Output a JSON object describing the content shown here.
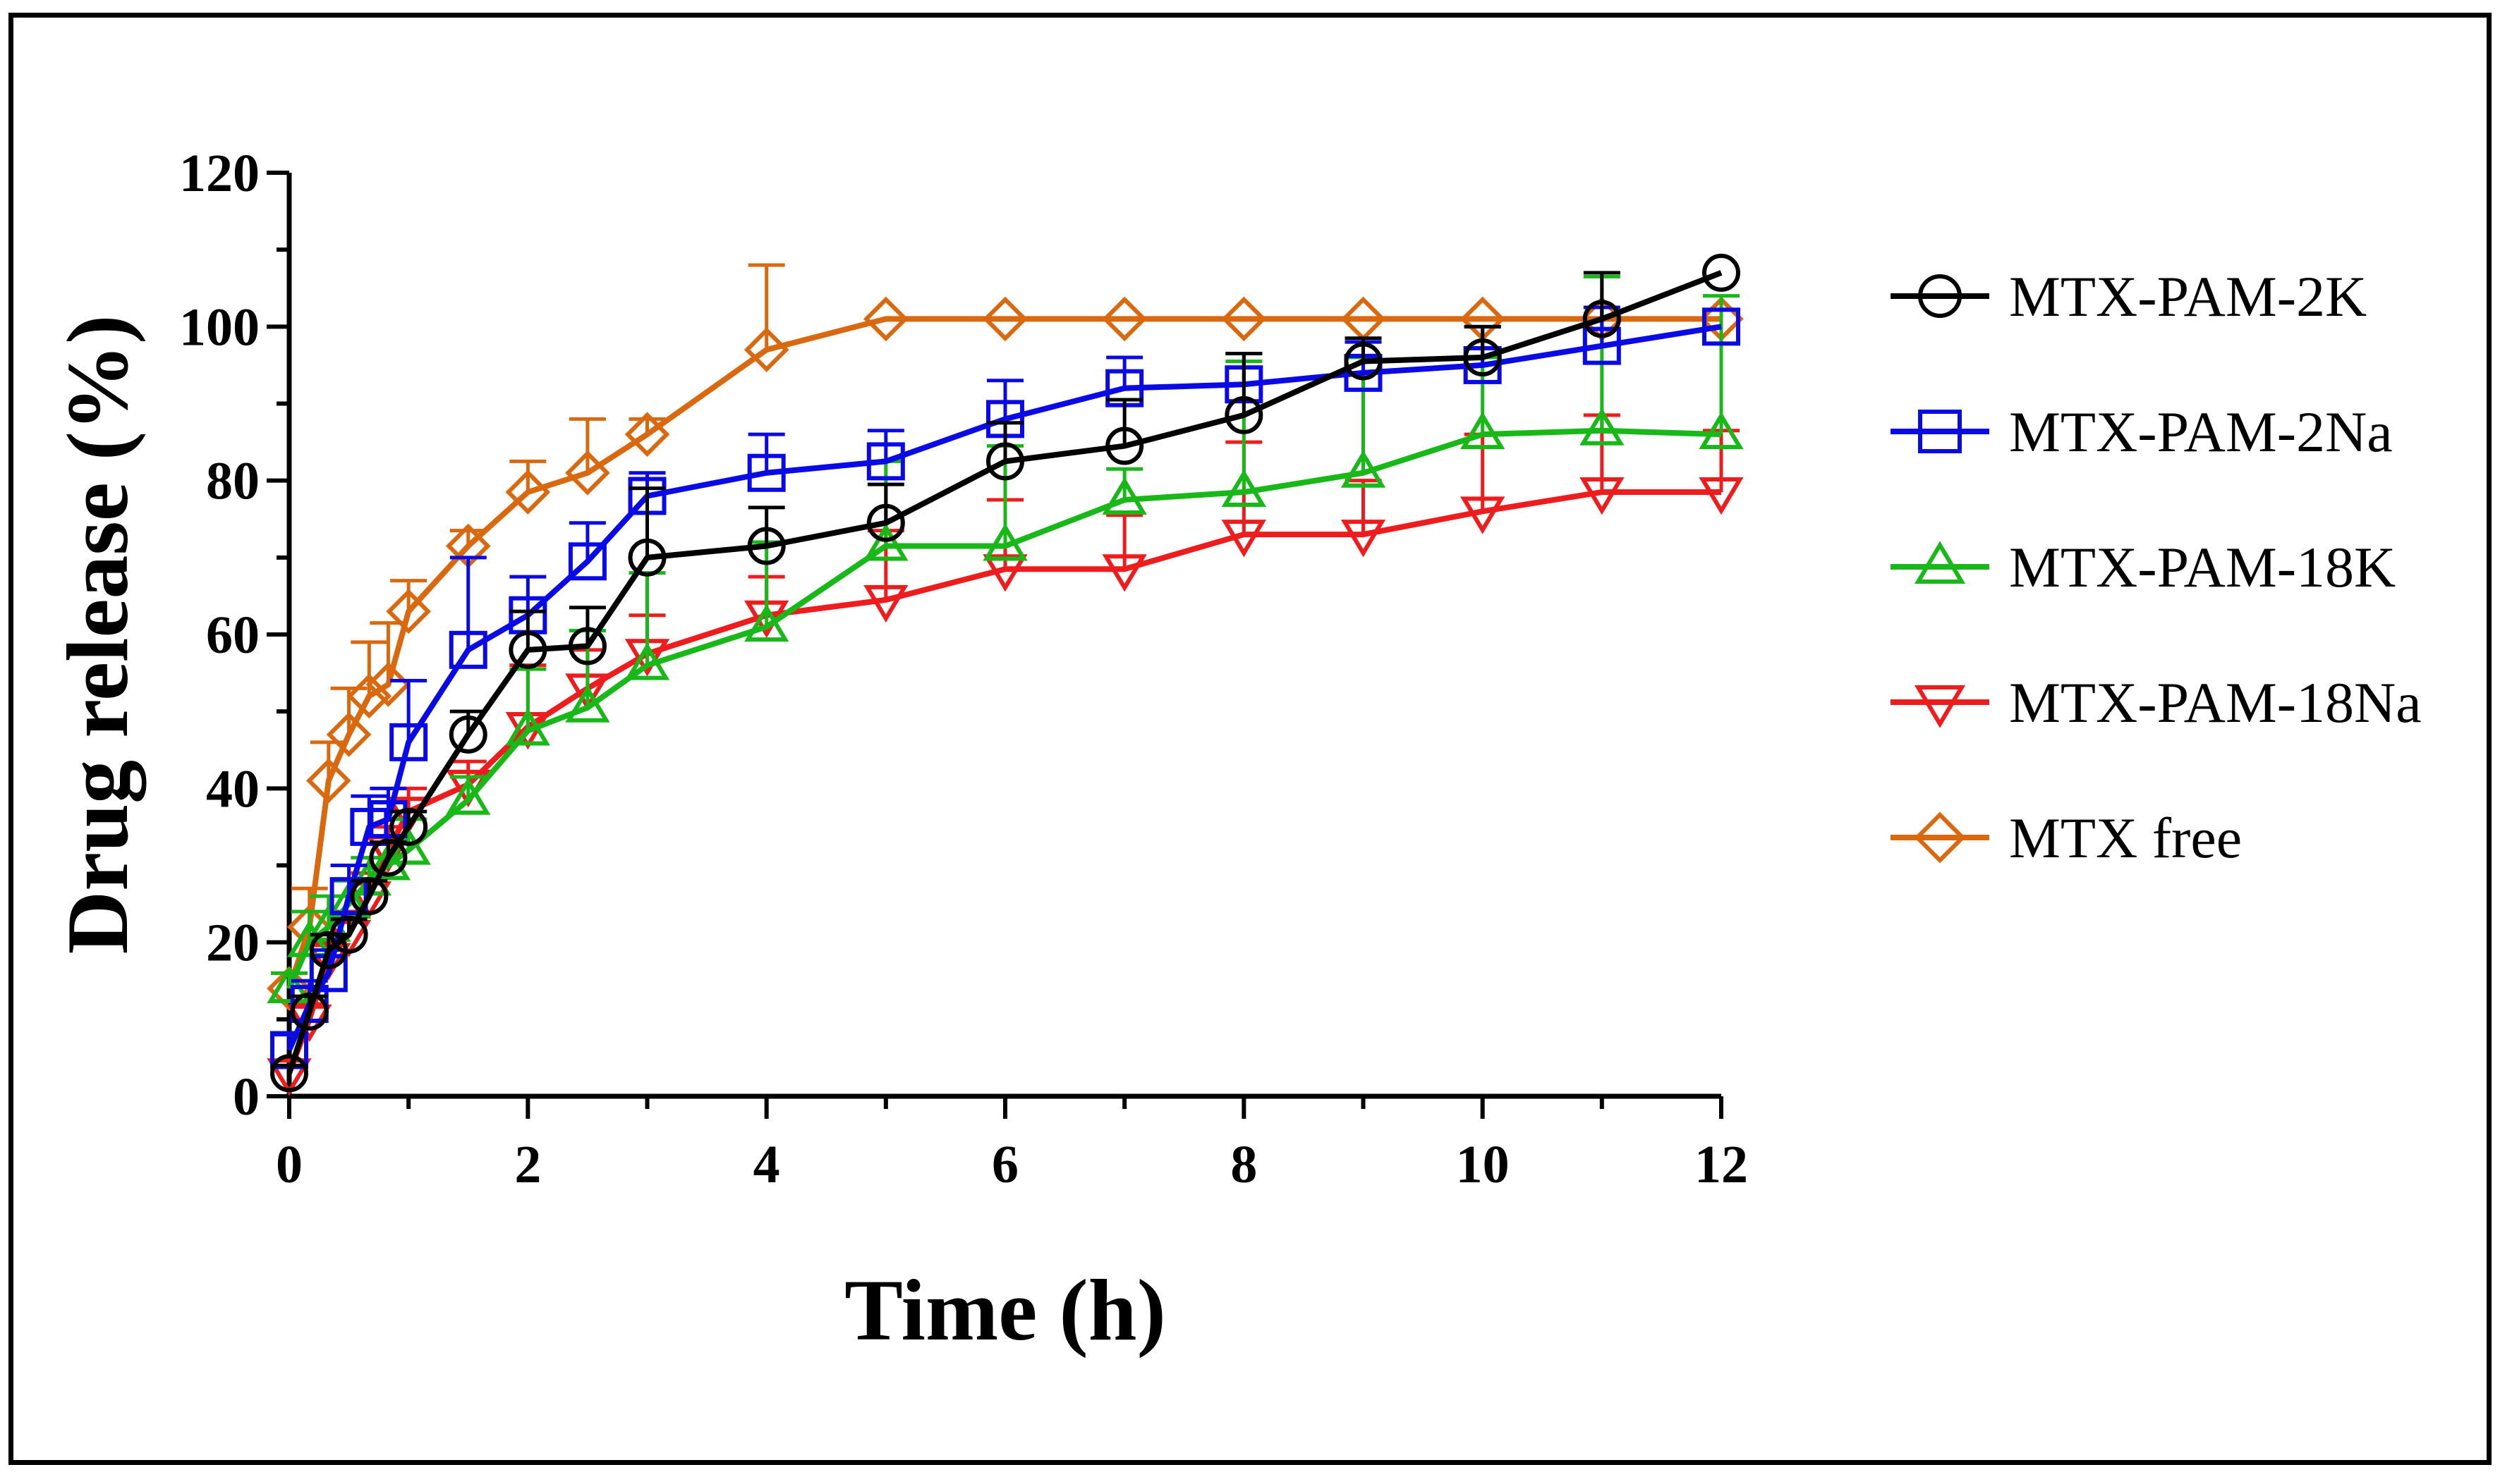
{
  "chart_data": {
    "type": "line",
    "title": "",
    "xlabel": "Time (h)",
    "ylabel": "Drug release (%)",
    "xlim": [
      0,
      12
    ],
    "ylim": [
      0,
      120
    ],
    "xticks": [
      0,
      2,
      4,
      6,
      8,
      10,
      12
    ],
    "yticks": [
      0,
      20,
      40,
      60,
      80,
      100,
      120
    ],
    "x_minor_step": 1,
    "y_minor_step": 10,
    "grid": false,
    "legend_position": "right",
    "series": [
      {
        "name": "MTX-PAM-2K",
        "color": "#000000",
        "marker": "circle",
        "x": [
          0,
          0.17,
          0.33,
          0.5,
          0.67,
          0.83,
          1,
          1.5,
          2,
          2.5,
          3,
          4,
          5,
          6,
          7,
          8,
          9,
          10,
          11,
          12
        ],
        "values": [
          3,
          11,
          19,
          21,
          26,
          31,
          35,
          47,
          58,
          58.5,
          70,
          71.5,
          74.5,
          82.5,
          84.5,
          88.5,
          95.5,
          96,
          101,
          107
        ],
        "errors": [
          1,
          2,
          2,
          2,
          2,
          2,
          2,
          3,
          5,
          5,
          9,
          5,
          5,
          5,
          6,
          8,
          3,
          4,
          6,
          0
        ]
      },
      {
        "name": "MTX-PAM-2Na",
        "color": "#0a0ae6",
        "marker": "square",
        "x": [
          0,
          0.17,
          0.33,
          0.5,
          0.67,
          0.83,
          1,
          1.5,
          2,
          2.5,
          3,
          4,
          5,
          6,
          7,
          8,
          9,
          10,
          11,
          12
        ],
        "values": [
          6,
          12,
          16,
          26,
          35,
          36,
          46,
          58,
          62.5,
          69.5,
          78,
          81,
          82.5,
          88,
          92,
          92.5,
          94,
          95,
          97.5,
          100
        ],
        "errors": [
          2,
          3,
          3,
          4,
          4,
          4,
          8,
          12,
          5,
          5,
          3,
          5,
          4,
          5,
          4,
          4,
          4,
          5,
          5,
          0
        ]
      },
      {
        "name": "MTX-PAM-18K",
        "color": "#18b818",
        "marker": "triangle-up",
        "x": [
          0,
          0.17,
          0.33,
          0.5,
          0.67,
          0.83,
          1,
          1.5,
          2,
          2.5,
          3,
          4,
          5,
          6,
          7,
          8,
          9,
          10,
          11,
          12
        ],
        "values": [
          14,
          20,
          22,
          25,
          28,
          30,
          32,
          38.5,
          47.5,
          50.5,
          56,
          61,
          71.5,
          71.5,
          77.5,
          78.5,
          81,
          86,
          86.5,
          86
        ],
        "errors": [
          2,
          4,
          4,
          3,
          3,
          3,
          4,
          3,
          8,
          10,
          12,
          11,
          11,
          13,
          4,
          17,
          15,
          10,
          20,
          18
        ]
      },
      {
        "name": "MTX-PAM-18Na",
        "color": "#ee1c1c",
        "marker": "triangle-down",
        "x": [
          0,
          0.17,
          0.33,
          0.5,
          0.67,
          0.83,
          1,
          1.5,
          2,
          2.5,
          3,
          4,
          5,
          6,
          7,
          8,
          9,
          10,
          11,
          12
        ],
        "values": [
          3,
          10,
          18,
          21,
          26,
          32,
          37,
          40.5,
          48,
          53,
          57.5,
          62.5,
          64.5,
          68.5,
          68.5,
          73,
          73,
          76,
          78.5,
          78.5
        ],
        "errors": [
          1,
          2,
          2,
          3,
          3,
          3,
          3,
          3,
          8,
          5,
          5,
          5,
          9,
          9,
          7,
          12,
          7,
          10,
          10,
          8
        ]
      },
      {
        "name": "MTX free",
        "color": "#d9680f",
        "marker": "diamond",
        "x": [
          0,
          0.17,
          0.33,
          0.5,
          0.67,
          0.83,
          1,
          1.5,
          2,
          2.5,
          3,
          4,
          5,
          6,
          7,
          8,
          9,
          10,
          11,
          12
        ],
        "values": [
          14,
          22,
          41,
          47,
          52,
          53.5,
          63,
          71.5,
          78.5,
          81,
          86,
          97,
          101,
          101,
          101,
          101,
          101,
          101,
          101,
          101
        ],
        "errors": [
          2,
          5,
          5,
          6,
          7,
          8,
          4,
          2,
          4,
          7,
          2,
          11,
          0,
          0,
          0,
          0,
          0,
          0,
          0,
          0
        ]
      }
    ]
  }
}
